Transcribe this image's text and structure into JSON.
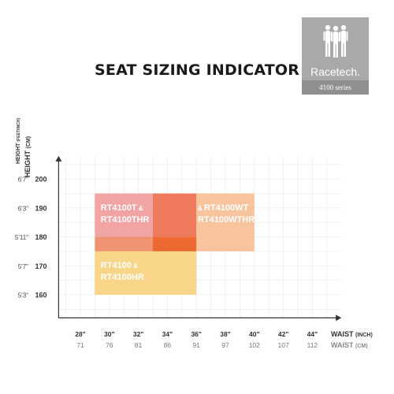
{
  "title": "SEAT SIZING INDICATOR",
  "logo": {
    "brand": "Racetech.",
    "series": "4100 series",
    "background": "#a9a9a9"
  },
  "chart_data": {
    "type": "heatmap",
    "title": "SEAT SIZING INDICATOR",
    "y_axis": {
      "label_primary": "HEIGHT (CM)",
      "label_primary_unit_prefix": "HEIGHT ",
      "label_primary_unit": "(CM)",
      "label_secondary_prefix": "HEIGHT ",
      "label_secondary_unit": "(FEET/INCH)",
      "ticks": [
        {
          "cm": 160,
          "ftin": "5'3\""
        },
        {
          "cm": 170,
          "ftin": "5'7\""
        },
        {
          "cm": 180,
          "ftin": "5'11\""
        },
        {
          "cm": 190,
          "ftin": "6'3\""
        },
        {
          "cm": 200,
          "ftin": "6'7\""
        }
      ]
    },
    "x_axis": {
      "label_inch": "WAIST",
      "label_inch_unit": "(INCH)",
      "label_cm": "WAIST",
      "label_cm_unit": "(CM)",
      "ticks": [
        {
          "inch": "28\"",
          "cm": "71",
          "value": 28
        },
        {
          "inch": "30\"",
          "cm": "76",
          "value": 30
        },
        {
          "inch": "32\"",
          "cm": "81",
          "value": 32
        },
        {
          "inch": "34\"",
          "cm": "86",
          "value": 34
        },
        {
          "inch": "36\"",
          "cm": "91",
          "value": 36
        },
        {
          "inch": "38\"",
          "cm": "97",
          "value": 38
        },
        {
          "inch": "40\"",
          "cm": "102",
          "value": 40
        },
        {
          "inch": "42\"",
          "cm": "107",
          "value": 42
        },
        {
          "inch": "44\"",
          "cm": "112",
          "value": 44
        }
      ]
    },
    "cells": [
      {
        "x0": 29,
        "x1": 33,
        "y0": 180,
        "y1": 195,
        "color": "#f2a3a3"
      },
      {
        "x0": 33,
        "x1": 36,
        "y0": 180,
        "y1": 195,
        "color": "#ef7a5b"
      },
      {
        "x0": 36,
        "x1": 40,
        "y0": 175,
        "y1": 195,
        "color": "#f7c49d"
      },
      {
        "x0": 29,
        "x1": 33,
        "y0": 175,
        "y1": 180,
        "color": "#ef9473"
      },
      {
        "x0": 33,
        "x1": 36,
        "y0": 175,
        "y1": 180,
        "color": "#ec6a31"
      },
      {
        "x0": 29,
        "x1": 36,
        "y0": 160,
        "y1": 175,
        "color": "#f8d589"
      }
    ],
    "regions": [
      {
        "name_lines": [
          "RT4100T",
          "RT4100THR"
        ],
        "amp": " &",
        "color": "#f2a3a3",
        "label_x": 29.4,
        "label_y": 192
      },
      {
        "name_lines": [
          "RT4100WT",
          "RT4100WTHR"
        ],
        "amp": "& ",
        "color": "#f7c49d",
        "label_x": 36.1,
        "label_y": 192
      },
      {
        "name_lines": [
          "RT4100",
          "RT4100HR"
        ],
        "amp": " &",
        "color": "#f8d589",
        "label_x": 29.4,
        "label_y": 172
      }
    ],
    "xlim": [
      26.5,
      46
    ],
    "ylim": [
      152,
      208
    ],
    "grid": true
  }
}
